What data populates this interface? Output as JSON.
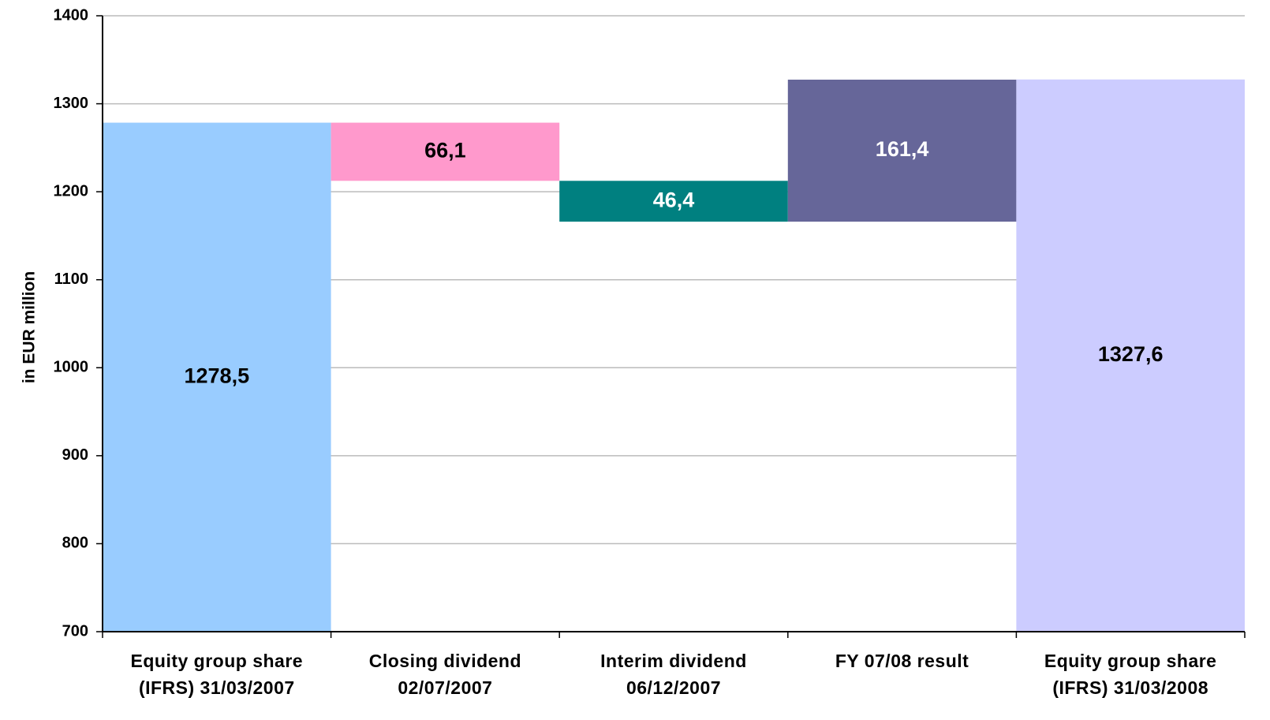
{
  "chart_data": {
    "type": "waterfall",
    "y_label": "in EUR million",
    "categories": [
      "Equity group share\n(IFRS) 31/03/2007",
      "Closing dividend\n02/07/2007",
      "Interim dividend\n06/12/2007",
      "FY 07/08 result",
      "Equity group share\n(IFRS) 31/03/2008"
    ],
    "values": [
      1278.5,
      66.1,
      46.4,
      161.4,
      1327.6
    ],
    "value_labels": [
      "1278,5",
      "66,1",
      "46,4",
      "161,4",
      "1327,6"
    ],
    "measure": [
      "absolute",
      "decrease",
      "decrease",
      "increase",
      "absolute"
    ],
    "colors": [
      "#99ccff",
      "#ff99cc",
      "#008080",
      "#666699",
      "#ccccff"
    ],
    "ylim": [
      700,
      1400
    ],
    "yticks": [
      700,
      800,
      900,
      1000,
      1100,
      1200,
      1300,
      1400
    ],
    "grid": true
  }
}
